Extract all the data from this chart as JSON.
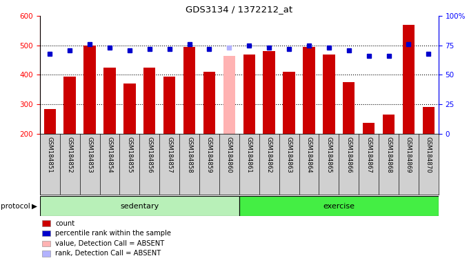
{
  "title": "GDS3134 / 1372212_at",
  "samples": [
    "GSM184851",
    "GSM184852",
    "GSM184853",
    "GSM184854",
    "GSM184855",
    "GSM184856",
    "GSM184857",
    "GSM184858",
    "GSM184859",
    "GSM184860",
    "GSM184861",
    "GSM184862",
    "GSM184863",
    "GSM184864",
    "GSM184865",
    "GSM184866",
    "GSM184867",
    "GSM184868",
    "GSM184869",
    "GSM184870"
  ],
  "counts": [
    285,
    395,
    500,
    425,
    370,
    425,
    395,
    495,
    410,
    465,
    470,
    480,
    410,
    495,
    470,
    375,
    238,
    265,
    570,
    290
  ],
  "absent_index": 9,
  "percentile_ranks": [
    68,
    71,
    76,
    73,
    71,
    72,
    72,
    76,
    72,
    73,
    75,
    73,
    72,
    75,
    73,
    71,
    66,
    66,
    76,
    68
  ],
  "sedentary_count": 10,
  "exercise_count": 10,
  "ylim_left": [
    200,
    600
  ],
  "ylim_right": [
    0,
    100
  ],
  "yticks_left": [
    200,
    300,
    400,
    500,
    600
  ],
  "yticks_right": [
    0,
    25,
    50,
    75,
    100
  ],
  "bar_color": "#cc0000",
  "absent_bar_color": "#ffb3b3",
  "dot_color": "#0000cc",
  "absent_dot_color": "#b3b3ff",
  "label_bg_color": "#d0d0d0",
  "protocol_sedentary_color": "#b8f0b8",
  "protocol_exercise_color": "#44ee44",
  "legend_items": [
    {
      "color": "#cc0000",
      "label": "count"
    },
    {
      "color": "#0000cc",
      "label": "percentile rank within the sample"
    },
    {
      "color": "#ffb3b3",
      "label": "value, Detection Call = ABSENT"
    },
    {
      "color": "#b3b3ff",
      "label": "rank, Detection Call = ABSENT"
    }
  ]
}
